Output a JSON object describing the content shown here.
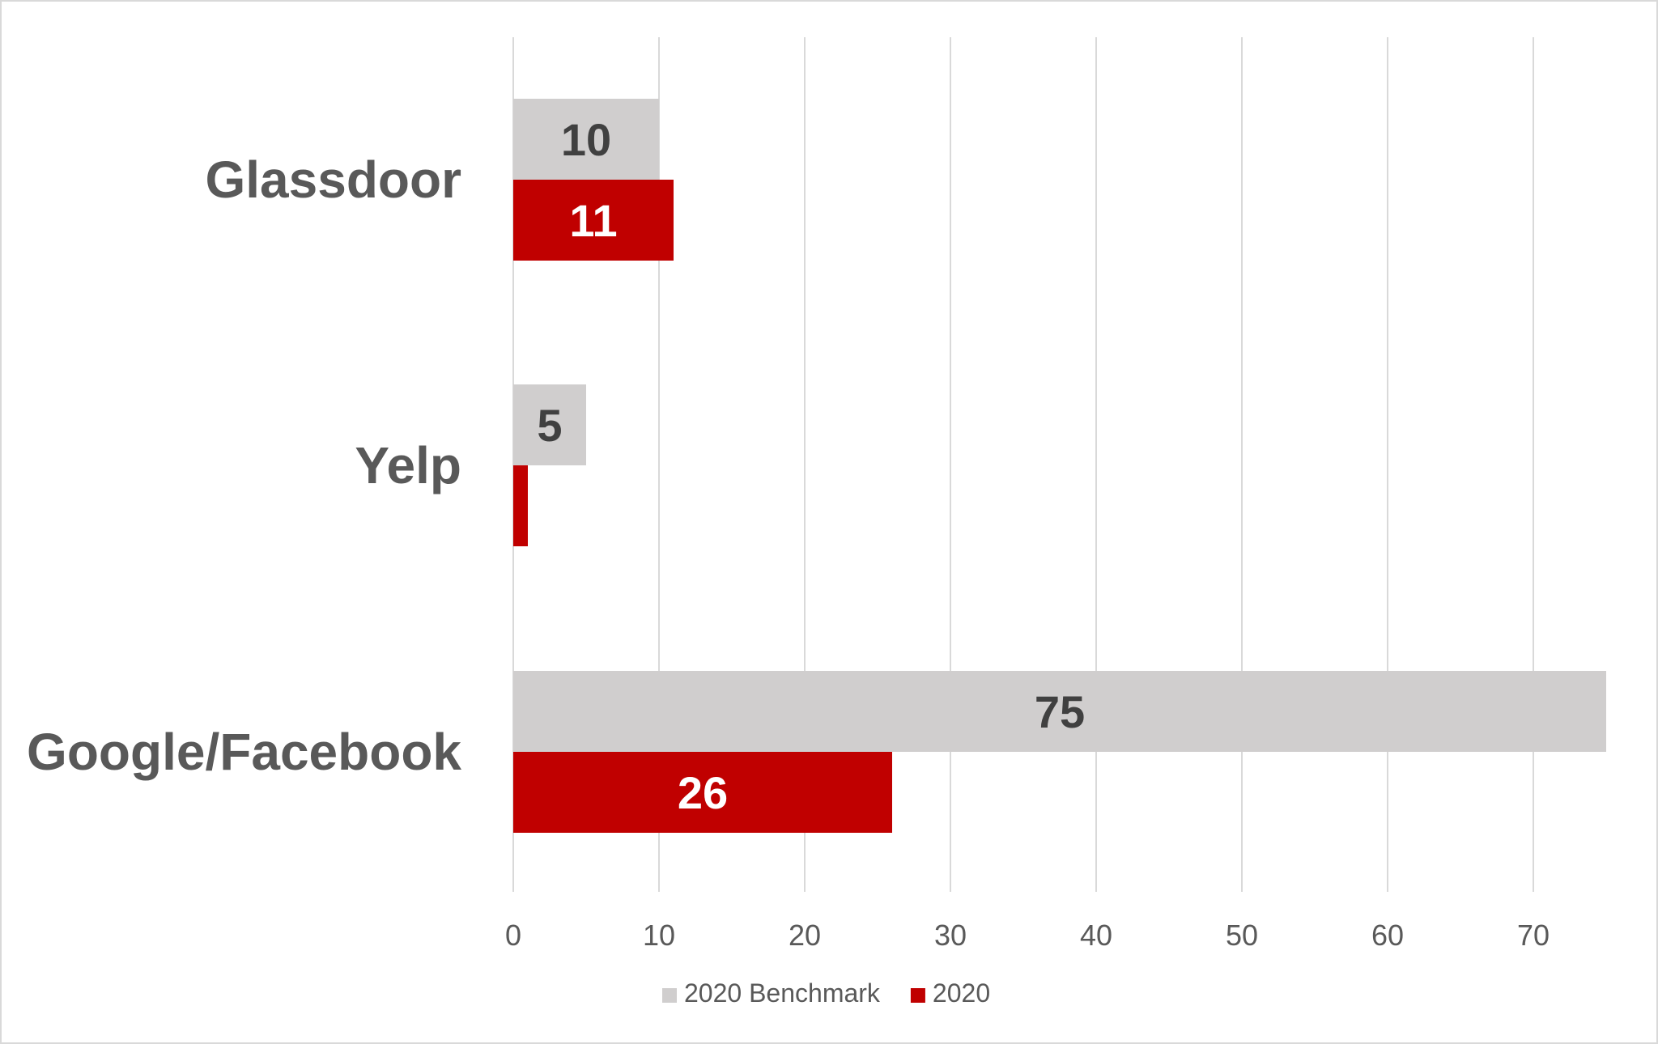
{
  "chart_data": {
    "type": "bar",
    "orientation": "horizontal",
    "categories": [
      "Glassdoor",
      "Yelp",
      "Google/Facebook"
    ],
    "series": [
      {
        "name": "2020 Benchmark",
        "values": [
          10,
          5,
          75
        ],
        "labels": [
          "10",
          "5",
          "75"
        ],
        "color": "#d0cece",
        "label_color": "#404040"
      },
      {
        "name": "2020",
        "values": [
          11,
          1,
          26
        ],
        "labels": [
          "11",
          "",
          "26"
        ],
        "color": "#c00000",
        "label_color": "#ffffff"
      }
    ],
    "xlim": [
      0,
      75
    ],
    "xticks": [
      0,
      10,
      20,
      30,
      40,
      50,
      60,
      70
    ],
    "grid": true,
    "legend": "bottom",
    "title": "",
    "xlabel": "",
    "ylabel": ""
  }
}
